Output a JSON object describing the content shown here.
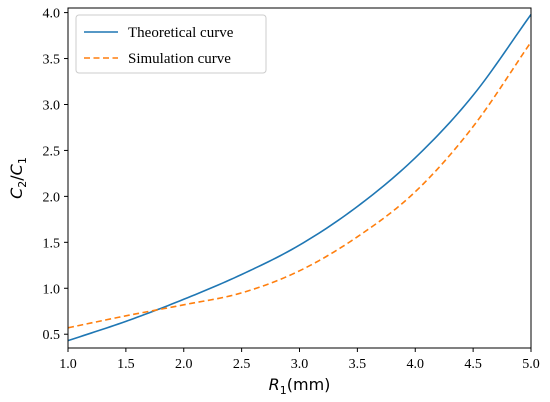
{
  "chart_data": {
    "type": "line",
    "title": "",
    "xlabel": "R1(mm)",
    "ylabel": "C2/C1",
    "xlim": [
      1.0,
      5.0
    ],
    "ylim": [
      0.35,
      4.05
    ],
    "xticks": [
      "1.0",
      "1.5",
      "2.0",
      "2.5",
      "3.0",
      "3.5",
      "4.0",
      "4.5",
      "5.0"
    ],
    "yticks": [
      "0.5",
      "1.0",
      "1.5",
      "2.0",
      "2.5",
      "3.0",
      "3.5",
      "4.0"
    ],
    "grid": false,
    "legend_position": "top-left",
    "x": [
      1.0,
      1.5,
      2.0,
      2.5,
      3.0,
      3.5,
      4.0,
      4.5,
      5.0
    ],
    "series": [
      {
        "name": "Theoretical curve",
        "color": "#1f77b4",
        "style": "solid",
        "values": [
          0.43,
          0.64,
          0.88,
          1.15,
          1.47,
          1.89,
          2.42,
          3.1,
          3.98
        ]
      },
      {
        "name": "Simulation curve",
        "color": "#ff7f0e",
        "style": "dashed",
        "values": [
          0.57,
          0.7,
          0.82,
          0.95,
          1.19,
          1.56,
          2.05,
          2.76,
          3.68
        ]
      }
    ]
  }
}
